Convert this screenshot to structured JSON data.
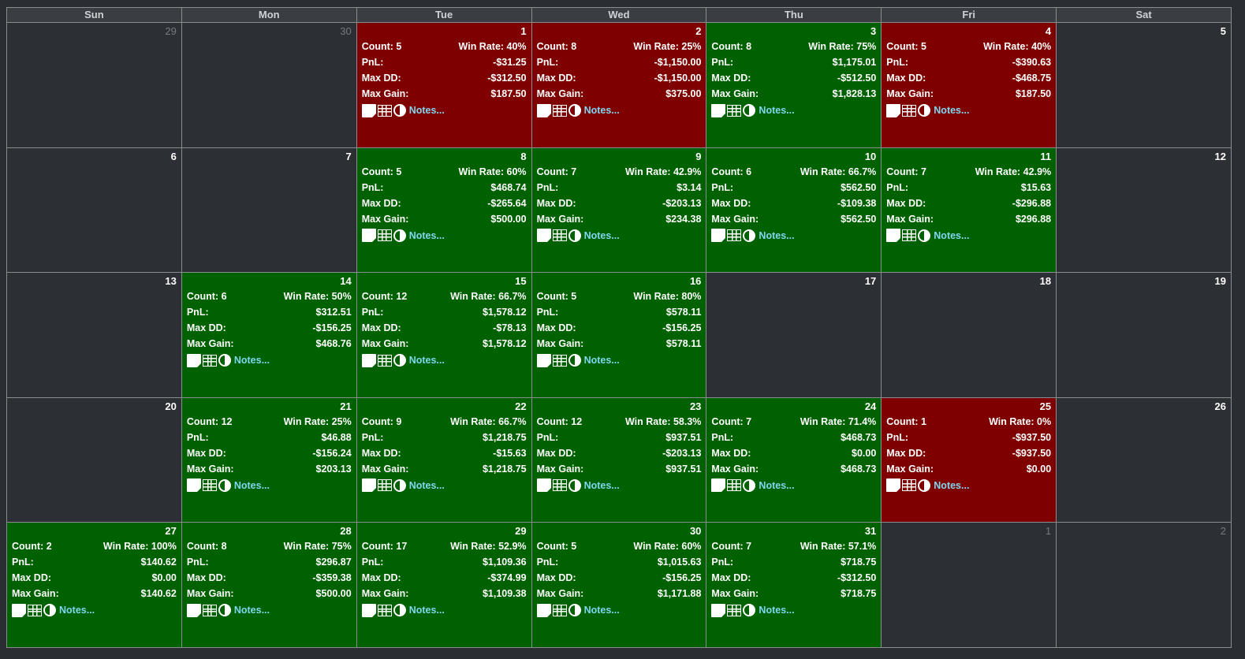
{
  "weekdays": [
    "Sun",
    "Mon",
    "Tue",
    "Wed",
    "Thu",
    "Fri",
    "Sat"
  ],
  "labels": {
    "count": "Count:",
    "win_rate": "Win Rate:",
    "pnl": "PnL:",
    "max_dd": "Max DD:",
    "max_gain": "Max Gain:",
    "notes": "Notes..."
  },
  "colors": {
    "win": "#006100",
    "loss": "#7f0000",
    "empty": "#2c2f33",
    "notes_link": "#7fd6f0"
  },
  "icons": [
    "note-icon",
    "table-icon",
    "contrast-icon"
  ],
  "weeks": [
    [
      {
        "day": "29",
        "other": true
      },
      {
        "day": "30",
        "other": true
      },
      {
        "day": "1",
        "status": "loss",
        "count": "5",
        "win_rate": "40%",
        "pnl": "-$31.25",
        "max_dd": "-$312.50",
        "max_gain": "$187.50"
      },
      {
        "day": "2",
        "status": "loss",
        "count": "8",
        "win_rate": "25%",
        "pnl": "-$1,150.00",
        "max_dd": "-$1,150.00",
        "max_gain": "$375.00"
      },
      {
        "day": "3",
        "status": "win",
        "count": "8",
        "win_rate": "75%",
        "pnl": "$1,175.01",
        "max_dd": "-$512.50",
        "max_gain": "$1,828.13"
      },
      {
        "day": "4",
        "status": "loss",
        "count": "5",
        "win_rate": "40%",
        "pnl": "-$390.63",
        "max_dd": "-$468.75",
        "max_gain": "$187.50"
      },
      {
        "day": "5"
      }
    ],
    [
      {
        "day": "6"
      },
      {
        "day": "7"
      },
      {
        "day": "8",
        "status": "win",
        "count": "5",
        "win_rate": "60%",
        "pnl": "$468.74",
        "max_dd": "-$265.64",
        "max_gain": "$500.00"
      },
      {
        "day": "9",
        "status": "win",
        "count": "7",
        "win_rate": "42.9%",
        "pnl": "$3.14",
        "max_dd": "-$203.13",
        "max_gain": "$234.38"
      },
      {
        "day": "10",
        "status": "win",
        "count": "6",
        "win_rate": "66.7%",
        "pnl": "$562.50",
        "max_dd": "-$109.38",
        "max_gain": "$562.50"
      },
      {
        "day": "11",
        "status": "win",
        "count": "7",
        "win_rate": "42.9%",
        "pnl": "$15.63",
        "max_dd": "-$296.88",
        "max_gain": "$296.88"
      },
      {
        "day": "12"
      }
    ],
    [
      {
        "day": "13"
      },
      {
        "day": "14",
        "status": "win",
        "count": "6",
        "win_rate": "50%",
        "pnl": "$312.51",
        "max_dd": "-$156.25",
        "max_gain": "$468.76"
      },
      {
        "day": "15",
        "status": "win",
        "count": "12",
        "win_rate": "66.7%",
        "pnl": "$1,578.12",
        "max_dd": "-$78.13",
        "max_gain": "$1,578.12"
      },
      {
        "day": "16",
        "status": "win",
        "count": "5",
        "win_rate": "80%",
        "pnl": "$578.11",
        "max_dd": "-$156.25",
        "max_gain": "$578.11"
      },
      {
        "day": "17"
      },
      {
        "day": "18"
      },
      {
        "day": "19"
      }
    ],
    [
      {
        "day": "20"
      },
      {
        "day": "21",
        "status": "win",
        "count": "12",
        "win_rate": "25%",
        "pnl": "$46.88",
        "max_dd": "-$156.24",
        "max_gain": "$203.13"
      },
      {
        "day": "22",
        "status": "win",
        "count": "9",
        "win_rate": "66.7%",
        "pnl": "$1,218.75",
        "max_dd": "-$15.63",
        "max_gain": "$1,218.75"
      },
      {
        "day": "23",
        "status": "win",
        "count": "12",
        "win_rate": "58.3%",
        "pnl": "$937.51",
        "max_dd": "-$203.13",
        "max_gain": "$937.51"
      },
      {
        "day": "24",
        "status": "win",
        "count": "7",
        "win_rate": "71.4%",
        "pnl": "$468.73",
        "max_dd": "$0.00",
        "max_gain": "$468.73"
      },
      {
        "day": "25",
        "status": "loss",
        "count": "1",
        "win_rate": "0%",
        "pnl": "-$937.50",
        "max_dd": "-$937.50",
        "max_gain": "$0.00"
      },
      {
        "day": "26"
      }
    ],
    [
      {
        "day": "27",
        "status": "win",
        "count": "2",
        "win_rate": "100%",
        "pnl": "$140.62",
        "max_dd": "$0.00",
        "max_gain": "$140.62"
      },
      {
        "day": "28",
        "status": "win",
        "count": "8",
        "win_rate": "75%",
        "pnl": "$296.87",
        "max_dd": "-$359.38",
        "max_gain": "$500.00"
      },
      {
        "day": "29",
        "status": "win",
        "count": "17",
        "win_rate": "52.9%",
        "pnl": "$1,109.36",
        "max_dd": "-$374.99",
        "max_gain": "$1,109.38"
      },
      {
        "day": "30",
        "status": "win",
        "count": "5",
        "win_rate": "60%",
        "pnl": "$1,015.63",
        "max_dd": "-$156.25",
        "max_gain": "$1,171.88"
      },
      {
        "day": "31",
        "status": "win",
        "count": "7",
        "win_rate": "57.1%",
        "pnl": "$718.75",
        "max_dd": "-$312.50",
        "max_gain": "$718.75"
      },
      {
        "day": "1",
        "other": true
      },
      {
        "day": "2",
        "other": true
      }
    ]
  ]
}
